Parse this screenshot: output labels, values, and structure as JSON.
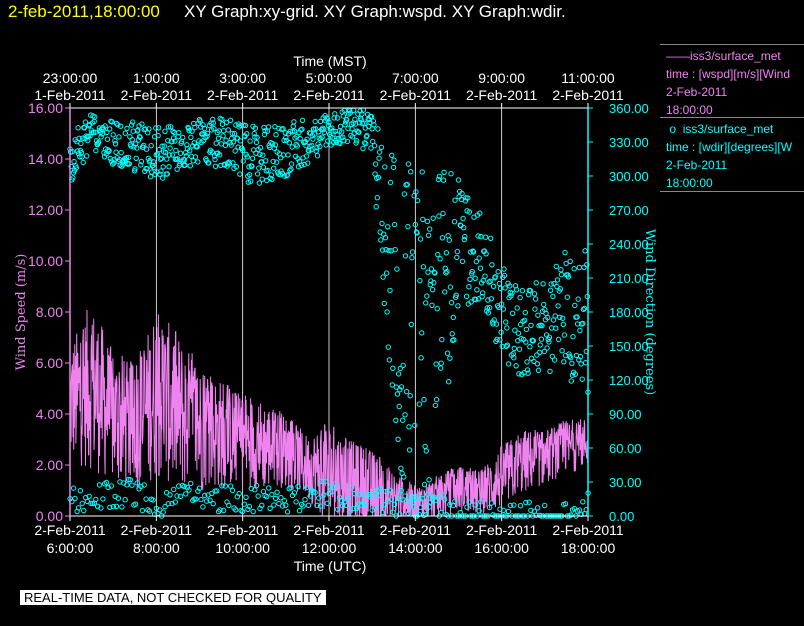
{
  "header": {
    "datetime": "2-feb-2011,18:00:00",
    "graphs": "XY Graph:xy-grid.  XY Graph:wspd.  XY Graph:wdir."
  },
  "legend": {
    "wspd": {
      "series": "iss3/surface_met",
      "field": "time : [wspd][m/s][Wind",
      "date": "2-Feb-2011",
      "time": "18:00:00"
    },
    "wdir": {
      "series": "iss3/surface_met",
      "field": "time : [wdir][degrees][W",
      "date": "2-Feb-2011",
      "time": "18:00:00"
    }
  },
  "quality_note": "REAL-TIME DATA, NOT CHECKED FOR QUALITY",
  "colors": {
    "wspd": "#ee82ee",
    "wdir": "#00ffff",
    "header_date": "#ffff00",
    "grid": "#ffffff",
    "background": "#000000"
  },
  "chart_data": {
    "type": "line",
    "x_units": "hours UTC on 2-Feb-2011",
    "top_axis": {
      "title": "Time (MST)",
      "ticks": [
        {
          "x": 6,
          "time": "23:00:00",
          "date": "1-Feb-2011"
        },
        {
          "x": 8,
          "time": "1:00:00",
          "date": "2-Feb-2011"
        },
        {
          "x": 10,
          "time": "3:00:00",
          "date": "2-Feb-2011"
        },
        {
          "x": 12,
          "time": "5:00:00",
          "date": "2-Feb-2011"
        },
        {
          "x": 14,
          "time": "7:00:00",
          "date": "2-Feb-2011"
        },
        {
          "x": 16,
          "time": "9:00:00",
          "date": "2-Feb-2011"
        },
        {
          "x": 18,
          "time": "11:00:00",
          "date": "2-Feb-2011"
        }
      ]
    },
    "bottom_axis": {
      "title": "Time (UTC)",
      "ticks": [
        {
          "x": 6,
          "date": "2-Feb-2011",
          "time": "6:00:00"
        },
        {
          "x": 8,
          "date": "2-Feb-2011",
          "time": "8:00:00"
        },
        {
          "x": 10,
          "date": "2-Feb-2011",
          "time": "10:00:00"
        },
        {
          "x": 12,
          "date": "2-Feb-2011",
          "time": "12:00:00"
        },
        {
          "x": 14,
          "date": "2-Feb-2011",
          "time": "14:00:00"
        },
        {
          "x": 16,
          "date": "2-Feb-2011",
          "time": "16:00:00"
        },
        {
          "x": 18,
          "date": "2-Feb-2011",
          "time": "18:00:00"
        }
      ]
    },
    "xlim": [
      6,
      18
    ],
    "grid": true,
    "y_left": {
      "label": "Wind Speed (m/s)",
      "ylim": [
        0,
        16
      ],
      "ticks": [
        "0.00",
        "2.00",
        "4.00",
        "6.00",
        "8.00",
        "10.00",
        "12.00",
        "14.00",
        "16.00"
      ]
    },
    "y_right": {
      "label": "Wind Direction (degrees)",
      "ylim": [
        0,
        360
      ],
      "ticks": [
        "0.00",
        "30.00",
        "60.00",
        "90.00",
        "120.00",
        "150.00",
        "180.00",
        "210.00",
        "240.00",
        "270.00",
        "300.00",
        "330.00",
        "360.00"
      ]
    },
    "series": [
      {
        "key": "wspd",
        "axis": "left",
        "style": "line",
        "x": [
          6.0,
          6.5,
          7.0,
          7.5,
          8.0,
          8.5,
          9.0,
          9.5,
          10.0,
          10.5,
          11.0,
          11.5,
          12.0,
          12.5,
          13.0,
          13.5,
          14.0,
          14.5,
          15.0,
          15.5,
          16.0,
          16.5,
          17.0,
          17.5,
          18.0
        ],
        "mean": [
          4.2,
          4.8,
          3.6,
          3.2,
          4.5,
          3.8,
          3.2,
          3.0,
          2.8,
          2.6,
          2.4,
          1.8,
          1.5,
          1.2,
          0.9,
          0.6,
          0.4,
          0.6,
          1.0,
          0.8,
          1.4,
          2.0,
          2.2,
          2.6,
          2.8
        ],
        "max": [
          6.8,
          8.5,
          6.5,
          6.0,
          8.2,
          7.2,
          6.0,
          5.4,
          4.8,
          4.6,
          4.0,
          3.2,
          3.8,
          3.0,
          2.6,
          1.8,
          1.2,
          1.6,
          2.0,
          1.8,
          2.8,
          3.4,
          3.4,
          3.8,
          3.9
        ]
      },
      {
        "key": "wdir",
        "axis": "right",
        "style": "scatter",
        "x": [
          6.0,
          6.5,
          7.0,
          7.5,
          8.0,
          8.5,
          9.0,
          9.5,
          10.0,
          10.5,
          11.0,
          11.5,
          12.0,
          12.5,
          13.0,
          13.5,
          14.0,
          14.5,
          15.0,
          15.5,
          16.0,
          16.5,
          17.0,
          17.5,
          18.0
        ],
        "center": [
          315,
          340,
          330,
          325,
          320,
          325,
          330,
          330,
          320,
          318,
          322,
          330,
          340,
          345,
          340,
          200,
          150,
          180,
          240,
          230,
          180,
          160,
          170,
          180,
          175
        ],
        "spread": [
          25,
          15,
          20,
          25,
          25,
          20,
          20,
          25,
          25,
          25,
          25,
          20,
          15,
          15,
          20,
          140,
          150,
          140,
          60,
          40,
          40,
          40,
          40,
          60,
          70
        ],
        "low_band": [
          15,
          15,
          20,
          20,
          10,
          15,
          20,
          15,
          15,
          15,
          15,
          15,
          20,
          15,
          15,
          10,
          10,
          10,
          0,
          0,
          0,
          0,
          0,
          0,
          10
        ]
      }
    ]
  }
}
